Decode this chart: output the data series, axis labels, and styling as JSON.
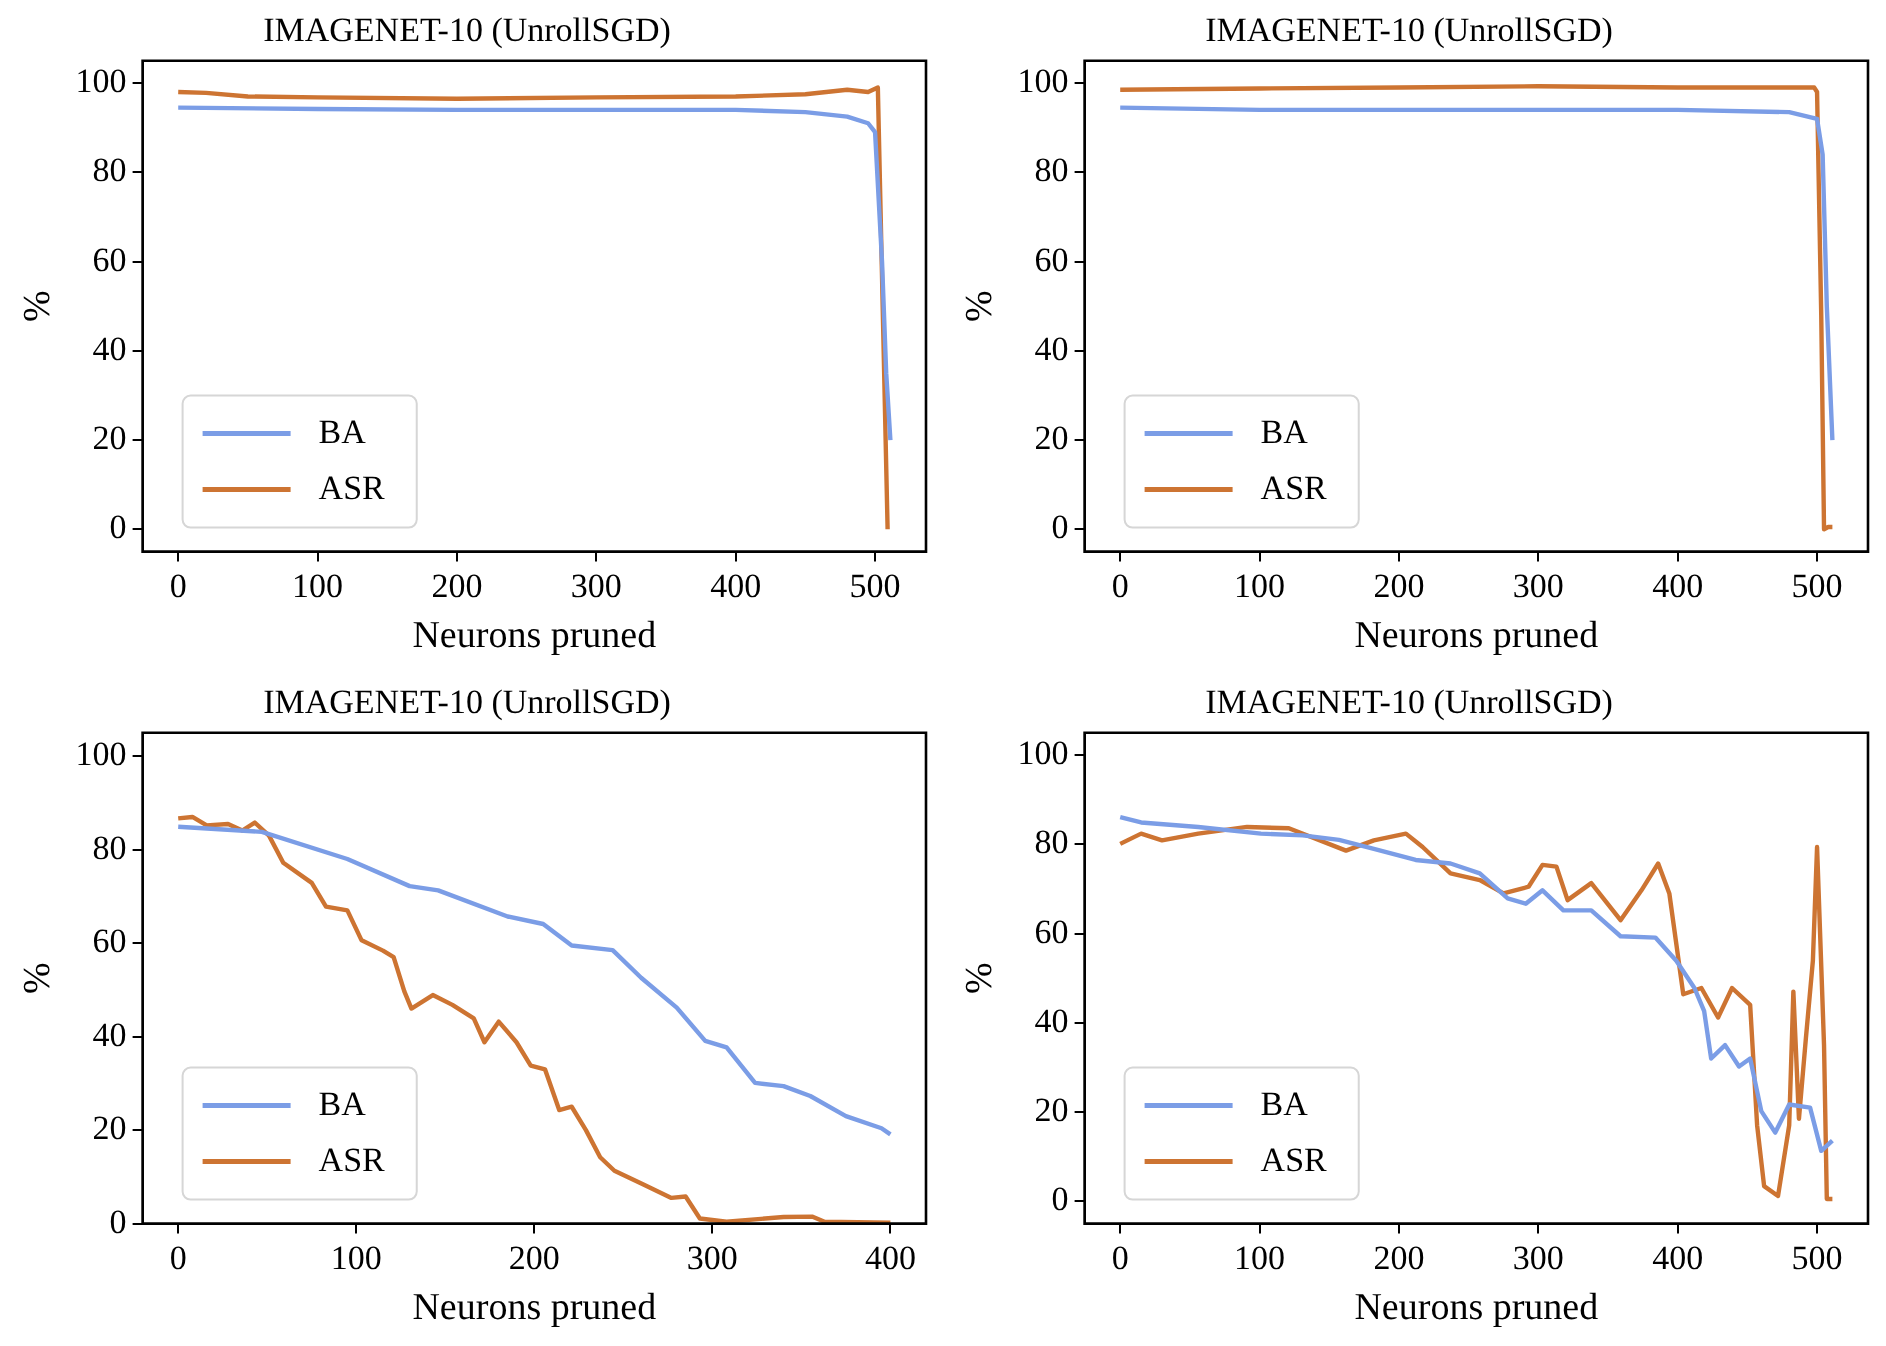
{
  "chart_data": [
    {
      "type": "line",
      "title": "IMAGENET-10 (UnrollSGD)",
      "xlabel": "Neurons pruned",
      "ylabel": "%",
      "xlim": [
        -25.55,
        536.55
      ],
      "ylim": [
        -5,
        105
      ],
      "xticks": [
        0,
        100,
        200,
        300,
        400,
        500
      ],
      "yticks": [
        0,
        20,
        40,
        60,
        80,
        100
      ],
      "legend": "bottom left",
      "series": [
        {
          "name": "BA",
          "color": "#7b9de6",
          "x": [
            0,
            100,
            200,
            300,
            400,
            450,
            480,
            495,
            500,
            505,
            508,
            511
          ],
          "values": [
            94.5,
            94.2,
            94,
            94,
            94,
            93.5,
            92.5,
            91,
            89,
            60,
            35,
            20
          ]
        },
        {
          "name": "ASR",
          "color": "#cd7432",
          "x": [
            0,
            20,
            50,
            100,
            200,
            300,
            400,
            450,
            480,
            495,
            502,
            509
          ],
          "values": [
            98,
            97.8,
            97,
            96.8,
            96.5,
            96.8,
            97,
            97.5,
            98.5,
            98,
            99,
            0
          ]
        }
      ]
    },
    {
      "type": "line",
      "title": "IMAGENET-10 (UnrollSGD)",
      "xlabel": "Neurons pruned",
      "ylabel": "%",
      "xlim": [
        -25.55,
        536.55
      ],
      "ylim": [
        -5,
        105
      ],
      "xticks": [
        0,
        100,
        200,
        300,
        400,
        500
      ],
      "yticks": [
        0,
        20,
        40,
        60,
        80,
        100
      ],
      "legend": "bottom left",
      "series": [
        {
          "name": "BA",
          "color": "#7b9de6",
          "x": [
            0,
            100,
            200,
            300,
            400,
            480,
            500,
            504,
            507,
            511
          ],
          "values": [
            94.5,
            94,
            94,
            94,
            94,
            93.5,
            92,
            84,
            50,
            20
          ]
        },
        {
          "name": "ASR",
          "color": "#cd7432",
          "x": [
            0,
            100,
            200,
            300,
            400,
            498,
            500,
            503,
            505,
            508,
            511
          ],
          "values": [
            98.5,
            98.8,
            99,
            99.3,
            99,
            99,
            98,
            48,
            0,
            0.5,
            0.5
          ]
        }
      ]
    },
    {
      "type": "line",
      "title": "IMAGENET-10 (UnrollSGD)",
      "xlabel": "Neurons pruned",
      "ylabel": "%",
      "xlim": [
        -20,
        420
      ],
      "ylim": [
        0,
        105
      ],
      "xticks": [
        0,
        100,
        200,
        300,
        400
      ],
      "yticks": [
        0,
        20,
        40,
        60,
        80,
        100
      ],
      "legend": "bottom left",
      "series": [
        {
          "name": "BA",
          "color": "#7b9de6",
          "x": [
            0,
            47,
            95,
            130,
            146,
            185,
            205,
            221,
            244,
            260,
            280,
            296,
            308,
            324,
            340,
            355,
            375,
            395,
            400
          ],
          "values": [
            84.9,
            83.8,
            78,
            72.2,
            71.3,
            65.7,
            64.1,
            59.5,
            58.5,
            52.6,
            46.2,
            39.1,
            37.7,
            30.1,
            29.4,
            27.3,
            23,
            20.4,
            19.1
          ]
        },
        {
          "name": "ASR",
          "color": "#cd7432",
          "x": [
            0,
            8,
            16,
            28,
            36,
            43,
            51,
            59,
            75,
            83,
            95,
            103,
            115,
            121,
            127,
            131,
            143,
            154,
            166,
            172,
            180,
            190,
            198,
            206,
            214,
            221,
            229,
            237,
            245,
            261,
            277,
            285,
            293,
            308,
            340,
            356,
            363,
            400
          ],
          "values": [
            86.7,
            87,
            85.2,
            85.5,
            84.1,
            85.8,
            83,
            77.2,
            72.9,
            67.8,
            67,
            60.6,
            58.4,
            57,
            49.7,
            46,
            48.9,
            46.8,
            43.9,
            38.8,
            43.2,
            38.8,
            33.8,
            33,
            24.3,
            25,
            20,
            14.2,
            11.3,
            8.4,
            5.5,
            5.8,
            1.1,
            0.4,
            1.4,
            1.5,
            0.4,
            0.2
          ]
        }
      ]
    },
    {
      "type": "line",
      "title": "IMAGENET-10 (UnrollSGD)",
      "xlabel": "Neurons pruned",
      "ylabel": "%",
      "xlim": [
        -25.55,
        536.55
      ],
      "ylim": [
        -5,
        105
      ],
      "xticks": [
        0,
        100,
        200,
        300,
        400,
        500
      ],
      "yticks": [
        0,
        20,
        40,
        60,
        80,
        100
      ],
      "legend": "bottom left",
      "series": [
        {
          "name": "BA",
          "color": "#7b9de6",
          "x": [
            0,
            15,
            56,
            101,
            131,
            157,
            182,
            212,
            237,
            258,
            278,
            291,
            303,
            318,
            338,
            359,
            384,
            399,
            412,
            419,
            424,
            434,
            444,
            452,
            460,
            470,
            480,
            495,
            503,
            511
          ],
          "values": [
            86.1,
            84.9,
            83.9,
            82.4,
            82,
            81,
            79,
            76.5,
            75.7,
            73.5,
            67.9,
            66.7,
            69.7,
            65.2,
            65.2,
            59.4,
            59.1,
            53.9,
            47.8,
            42.6,
            32,
            35,
            30.2,
            32,
            20.2,
            15.4,
            21.7,
            21,
            11.3,
            13.6
          ]
        },
        {
          "name": "ASR",
          "color": "#cd7432",
          "x": [
            0,
            15,
            30,
            56,
            91,
            121,
            162,
            182,
            205,
            217,
            237,
            258,
            275,
            293,
            303,
            313,
            321,
            338,
            359,
            374,
            386,
            394,
            404,
            417,
            429,
            439,
            452,
            457,
            462,
            472,
            480,
            483,
            487,
            492,
            497,
            500,
            505,
            507,
            511
          ],
          "values": [
            80.1,
            82.4,
            80.9,
            82.4,
            83.9,
            83.6,
            78.6,
            80.9,
            82.4,
            79.4,
            73.5,
            72,
            69,
            70.5,
            75.4,
            75,
            67.5,
            71.3,
            63,
            69.7,
            75.7,
            69,
            46.4,
            47.8,
            41.2,
            47.8,
            44,
            17,
            3.4,
            1.2,
            17,
            47,
            18.5,
            36.6,
            53.9,
            79.4,
            35,
            0.5,
            0.5
          ]
        }
      ]
    }
  ]
}
